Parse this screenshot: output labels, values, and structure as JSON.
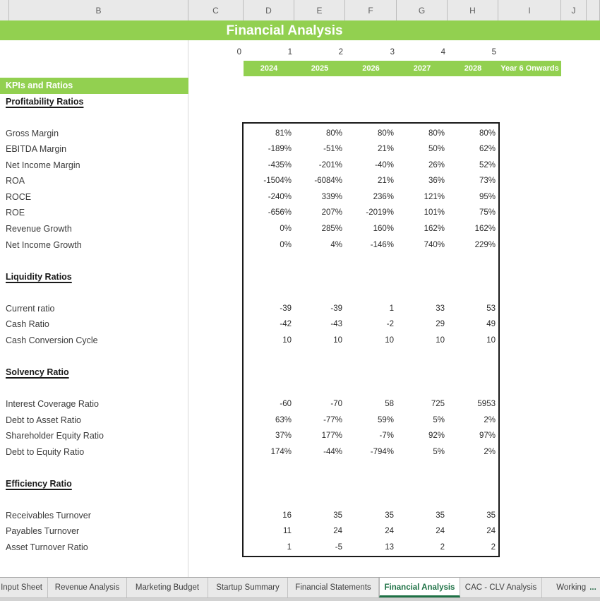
{
  "colors": {
    "accent_green": "#92d050",
    "active_tab_green": "#1e7145"
  },
  "banner": {
    "title": "Financial Analysis"
  },
  "header": {
    "column_letters": [
      "B",
      "C",
      "D",
      "E",
      "F",
      "G",
      "H",
      "I",
      "J"
    ]
  },
  "timeline": {
    "year_indices": [
      "0",
      "1",
      "2",
      "3",
      "4",
      "5"
    ],
    "year_labels": [
      "2024",
      "2025",
      "2026",
      "2027",
      "2028",
      "Year 6 Onwards"
    ]
  },
  "rows": [
    {
      "type": "kpi-header",
      "label": "KPIs and Ratios"
    },
    {
      "type": "section",
      "label": "Profitability Ratios"
    },
    {
      "type": "blank"
    },
    {
      "type": "item",
      "label": "Gross Margin",
      "values": [
        "81%",
        "80%",
        "80%",
        "80%",
        "80%"
      ]
    },
    {
      "type": "item",
      "label": "EBITDA Margin",
      "values": [
        "-189%",
        "-51%",
        "21%",
        "50%",
        "62%"
      ]
    },
    {
      "type": "item",
      "label": "Net Income Margin",
      "values": [
        "-435%",
        "-201%",
        "-40%",
        "26%",
        "52%"
      ]
    },
    {
      "type": "item",
      "label": "ROA",
      "values": [
        "-1504%",
        "-6084%",
        "21%",
        "36%",
        "73%"
      ]
    },
    {
      "type": "item",
      "label": "ROCE",
      "values": [
        "-240%",
        "339%",
        "236%",
        "121%",
        "95%"
      ]
    },
    {
      "type": "item",
      "label": "ROE",
      "values": [
        "-656%",
        "207%",
        "-2019%",
        "101%",
        "75%"
      ]
    },
    {
      "type": "item",
      "label": "Revenue Growth",
      "values": [
        "0%",
        "285%",
        "160%",
        "162%",
        "162%"
      ]
    },
    {
      "type": "item",
      "label": "Net Income Growth",
      "values": [
        "0%",
        "4%",
        "-146%",
        "740%",
        "229%"
      ]
    },
    {
      "type": "blank"
    },
    {
      "type": "section",
      "label": "Liquidity Ratios"
    },
    {
      "type": "blank"
    },
    {
      "type": "item",
      "label": "Current ratio",
      "values": [
        "-39",
        "-39",
        "1",
        "33",
        "53"
      ]
    },
    {
      "type": "item",
      "label": "Cash Ratio",
      "values": [
        "-42",
        "-43",
        "-2",
        "29",
        "49"
      ]
    },
    {
      "type": "item",
      "label": "Cash Conversion Cycle",
      "values": [
        "10",
        "10",
        "10",
        "10",
        "10"
      ]
    },
    {
      "type": "blank"
    },
    {
      "type": "section",
      "label": "Solvency Ratio"
    },
    {
      "type": "blank"
    },
    {
      "type": "item",
      "label": "Interest Coverage Ratio",
      "values": [
        "-60",
        "-70",
        "58",
        "725",
        "5953"
      ]
    },
    {
      "type": "item",
      "label": "Debt to Asset Ratio",
      "values": [
        "63%",
        "-77%",
        "59%",
        "5%",
        "2%"
      ]
    },
    {
      "type": "item",
      "label": "Shareholder Equity Ratio",
      "values": [
        "37%",
        "177%",
        "-7%",
        "92%",
        "97%"
      ]
    },
    {
      "type": "item",
      "label": "Debt to Equity Ratio",
      "values": [
        "174%",
        "-44%",
        "-794%",
        "5%",
        "2%"
      ]
    },
    {
      "type": "blank"
    },
    {
      "type": "section",
      "label": "Efficiency Ratio"
    },
    {
      "type": "blank"
    },
    {
      "type": "item",
      "label": "Receivables Turnover",
      "values": [
        "16",
        "35",
        "35",
        "35",
        "35"
      ]
    },
    {
      "type": "item",
      "label": "Payables Turnover",
      "values": [
        "11",
        "24",
        "24",
        "24",
        "24"
      ]
    },
    {
      "type": "item",
      "label": "Asset Turnover Ratio",
      "values": [
        "1",
        "-5",
        "13",
        "2",
        "2"
      ]
    }
  ],
  "tabs": [
    {
      "label": "Input Sheet",
      "active": false
    },
    {
      "label": "Revenue Analysis",
      "active": false
    },
    {
      "label": "Marketing Budget",
      "active": false
    },
    {
      "label": "Startup Summary",
      "active": false
    },
    {
      "label": "Financial Statements",
      "active": false
    },
    {
      "label": "Financial Analysis",
      "active": true
    },
    {
      "label": "CAC - CLV Analysis",
      "active": false
    },
    {
      "label": "Working",
      "active": false,
      "suffix": "..."
    }
  ]
}
